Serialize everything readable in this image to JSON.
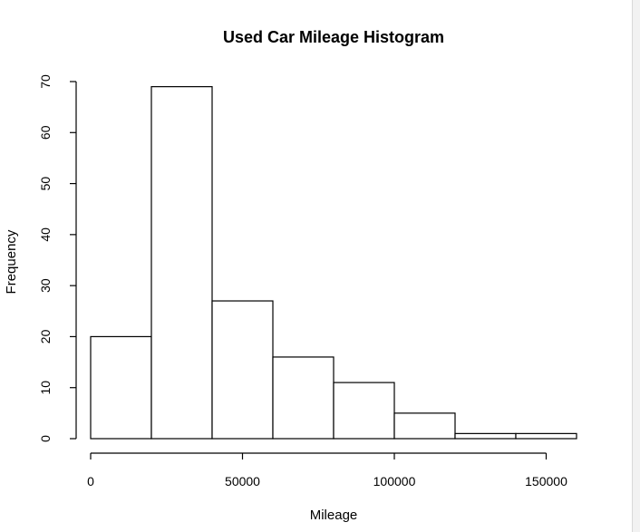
{
  "chart_data": {
    "type": "bar",
    "title": "Used Car Mileage Histogram",
    "xlabel": "Mileage",
    "ylabel": "Frequency",
    "bins": [
      {
        "start": 0,
        "end": 20000,
        "count": 20
      },
      {
        "start": 20000,
        "end": 40000,
        "count": 69
      },
      {
        "start": 40000,
        "end": 60000,
        "count": 27
      },
      {
        "start": 60000,
        "end": 80000,
        "count": 16
      },
      {
        "start": 80000,
        "end": 100000,
        "count": 11
      },
      {
        "start": 100000,
        "end": 120000,
        "count": 5
      },
      {
        "start": 120000,
        "end": 140000,
        "count": 1
      },
      {
        "start": 140000,
        "end": 160000,
        "count": 1
      }
    ],
    "x_ticks": [
      0,
      50000,
      100000,
      150000
    ],
    "x_tick_labels": [
      "0",
      "50000",
      "100000",
      "150000"
    ],
    "y_ticks": [
      0,
      10,
      20,
      30,
      40,
      50,
      60,
      70
    ],
    "y_tick_labels": [
      "0",
      "10",
      "20",
      "30",
      "40",
      "50",
      "60",
      "70"
    ],
    "xlim": [
      0,
      160000
    ],
    "ylim": [
      0,
      70
    ],
    "grid": false,
    "bar_fill": "#ffffff",
    "bar_stroke": "#000000"
  }
}
